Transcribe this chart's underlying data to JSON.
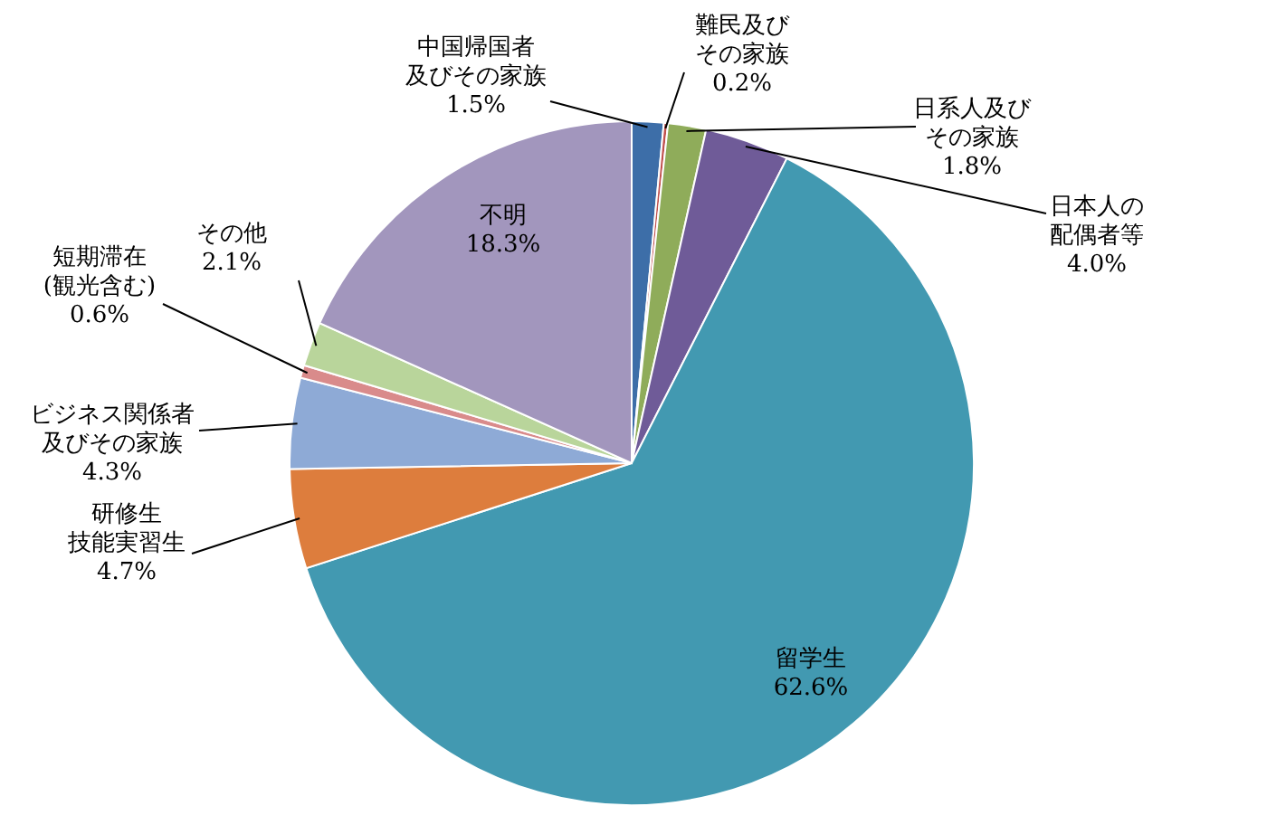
{
  "chart_data": {
    "type": "pie",
    "categories": [
      "中国帰国者及びその家族",
      "難民及びその家族",
      "日系人及びその家族",
      "日本人の配偶者等",
      "留学生",
      "研修生技能実習生",
      "ビジネス関係者及びその家族",
      "短期滞在(観光含む)",
      "その他",
      "不明"
    ],
    "values": [
      1.5,
      0.2,
      1.8,
      4.0,
      62.6,
      4.7,
      4.3,
      0.6,
      2.1,
      18.3
    ],
    "value_labels": [
      "1.5%",
      "0.2%",
      "1.8%",
      "4.0%",
      "62.6%",
      "4.7%",
      "4.3%",
      "0.6%",
      "2.1%",
      "18.3%"
    ],
    "colors": [
      "#3d6ea8",
      "#c0504d",
      "#8fac5a",
      "#6f5b98",
      "#4299b1",
      "#dd7d3d",
      "#8eaad6",
      "#d98b8b",
      "#b9d59b",
      "#a296bd"
    ]
  }
}
